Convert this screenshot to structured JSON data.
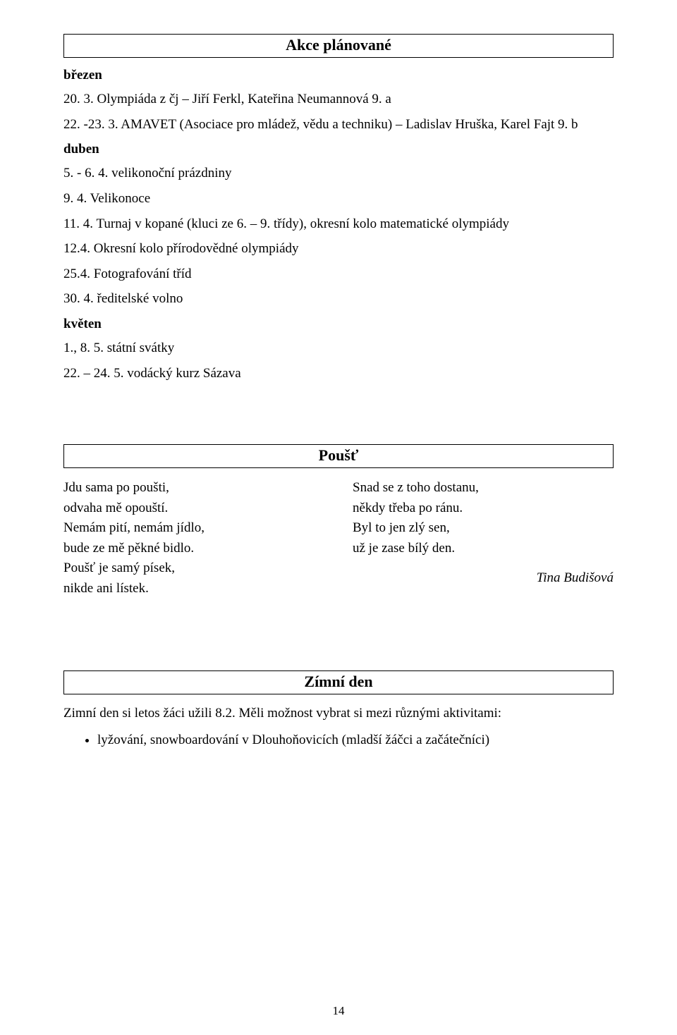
{
  "headings": {
    "akce": "Akce plánované",
    "poust": "Poušť",
    "zimni": "Zímní den"
  },
  "months": {
    "brezen": "březen",
    "duben": "duben",
    "kveten": "květen"
  },
  "events": {
    "brezen": {
      "e1": "20. 3. Olympiáda z čj – Jiří Ferkl, Kateřina Neumannová 9. a",
      "e2": "22. -23. 3. AMAVET (Asociace pro mládež, vědu a techniku) – Ladislav Hruška, Karel Fajt 9. b"
    },
    "duben": {
      "e1": "5. - 6. 4. velikonoční prázdniny",
      "e2": "9. 4. Velikonoce",
      "e3": "11. 4. Turnaj v kopané (kluci ze 6. – 9. třídy), okresní kolo matematické olympiády",
      "e4": "12.4. Okresní kolo přírodovědné olympiády",
      "e5": "25.4. Fotografování tříd",
      "e6": "30. 4. ředitelské volno"
    },
    "kveten": {
      "e1": "1., 8. 5. státní svátky",
      "e2": "22. – 24. 5. vodácký kurz Sázava"
    }
  },
  "poem": {
    "left": {
      "l1": "Jdu sama po poušti,",
      "l2": "odvaha mě opouští.",
      "l3": "Nemám pití, nemám jídlo,",
      "l4": "bude ze mě pěkné bidlo.",
      "l5": "Poušť je samý písek,",
      "l6": "nikde ani lístek."
    },
    "right": {
      "l1": "Snad se z toho dostanu,",
      "l2": "někdy třeba po ránu.",
      "l3": "Byl to jen zlý sen,",
      "l4": "už je zase bílý den."
    },
    "author": "Tina Budišová"
  },
  "zimni": {
    "intro": "Zimní den si letos žáci užili 8.2. Měli možnost vybrat si mezi různými aktivitami:",
    "bullets": {
      "b1": "lyžování, snowboardování v Dlouhoňovicích (mladší žáčci a začátečníci)"
    }
  },
  "pageNumber": "14"
}
